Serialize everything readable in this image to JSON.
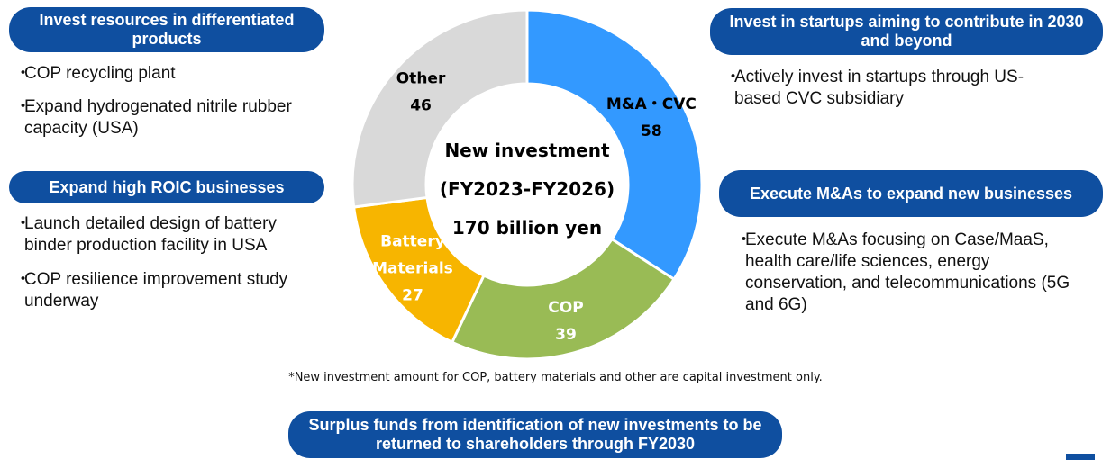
{
  "left_panels": [
    {
      "heading": "Invest resources in differentiated products",
      "bullets": [
        "COP recycling plant",
        "Expand hydrogenated nitrile rubber capacity (USA)"
      ]
    },
    {
      "heading": "Expand high ROIC businesses",
      "bullets": [
        "Launch detailed design of battery binder production facility in USA",
        "COP resilience improvement study underway"
      ]
    }
  ],
  "right_panels": [
    {
      "heading": "Invest in startups aiming to contribute in 2030 and beyond",
      "bullets": [
        "Actively invest in startups through US-based CVC subsidiary"
      ]
    },
    {
      "heading": "Execute M&As to expand new businesses",
      "bullets": [
        "Execute M&As focusing on Case/MaaS, health care/life sciences, energy conservation, and telecommunications (5G and 6G)"
      ]
    }
  ],
  "bullet_mark": "・",
  "chart_data": {
    "type": "pie",
    "center_lines": [
      "New investment",
      "(FY2023-FY2026)",
      "170 billion yen"
    ],
    "slices": [
      {
        "label": "M&A・CVC",
        "value": 58,
        "color": "#3399ff",
        "text_color": "#000000"
      },
      {
        "label": "COP",
        "value": 39,
        "color": "#99bb55",
        "text_color": "#ffffff"
      },
      {
        "label": "Battery Materials",
        "value": 27,
        "color": "#f7b500",
        "text_color": "#ffffff"
      },
      {
        "label": "Other",
        "value": 46,
        "color": "#d9d9d9",
        "text_color": "#000000"
      }
    ],
    "total": 170
  },
  "footnote": "*New investment amount for COP, battery materials and other are capital investment only.",
  "bottom_banner": "Surplus funds from identification of new investments to be returned to shareholders through FY2030"
}
